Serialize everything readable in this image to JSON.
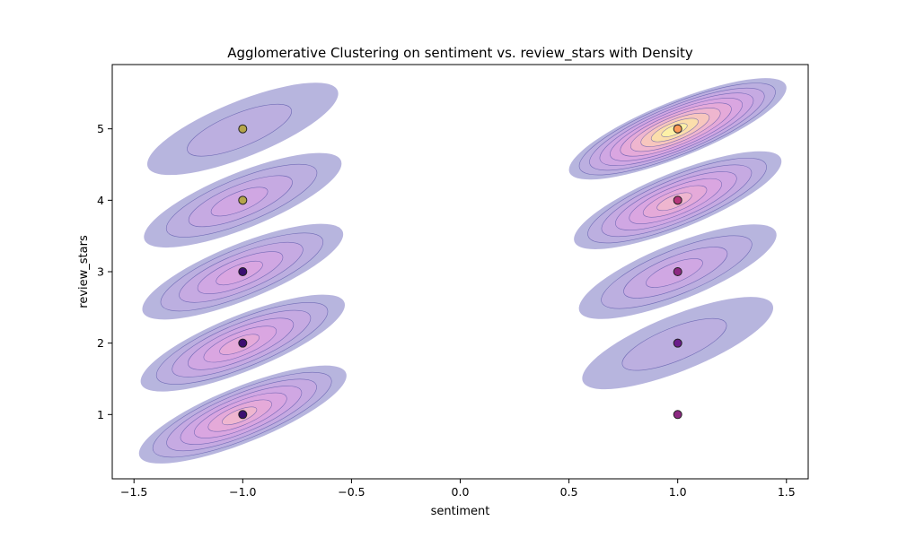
{
  "chart_data": {
    "type": "scatter",
    "title": "Agglomerative Clustering on sentiment vs. review_stars with Density",
    "xlabel": "sentiment",
    "ylabel": "review_stars",
    "xlim": [
      -1.6,
      1.6
    ],
    "ylim": [
      0.1,
      5.9
    ],
    "xticks": [
      -1.5,
      -1.0,
      -0.5,
      0.0,
      0.5,
      1.0,
      1.5
    ],
    "xtick_labels": [
      "−1.5",
      "−1.0",
      "−0.5",
      "0.0",
      "0.5",
      "1.0",
      "1.5"
    ],
    "yticks": [
      1,
      2,
      3,
      4,
      5
    ],
    "ytick_labels": [
      "1",
      "2",
      "3",
      "4",
      "5"
    ],
    "grid": false,
    "points": [
      {
        "x": -1,
        "y": 1,
        "color": "#3b0f70"
      },
      {
        "x": -1,
        "y": 2,
        "color": "#3b0f70"
      },
      {
        "x": -1,
        "y": 3,
        "color": "#3b0f70"
      },
      {
        "x": -1,
        "y": 4,
        "color": "#b5a54a"
      },
      {
        "x": -1,
        "y": 5,
        "color": "#b5a54a"
      },
      {
        "x": 1,
        "y": 1,
        "color": "#8c2981"
      },
      {
        "x": 1,
        "y": 2,
        "color": "#6a1b8a"
      },
      {
        "x": 1,
        "y": 3,
        "color": "#8c2981"
      },
      {
        "x": 1,
        "y": 4,
        "color": "#b6367a"
      },
      {
        "x": 1,
        "y": 5,
        "color": "#fc9a5a"
      }
    ],
    "density_blobs": [
      {
        "x": -1,
        "y": 1,
        "levels": 6
      },
      {
        "x": -1,
        "y": 2,
        "levels": 5
      },
      {
        "x": -1,
        "y": 3,
        "levels": 4
      },
      {
        "x": -1,
        "y": 4,
        "levels": 3
      },
      {
        "x": -1,
        "y": 5,
        "levels": 1
      },
      {
        "x": 1,
        "y": 2,
        "levels": 1
      },
      {
        "x": 1,
        "y": 3,
        "levels": 3
      },
      {
        "x": 1,
        "y": 4,
        "levels": 6
      },
      {
        "x": 1,
        "y": 5,
        "levels": 9
      }
    ],
    "density_colors": [
      "#b3b1dc",
      "#bcaee0",
      "#c6aae2",
      "#d0a6e3",
      "#daa6e0",
      "#e6abd8",
      "#f0b7cd",
      "#f7c8bb",
      "#fbe0a8",
      "#fdf3a6"
    ],
    "contour_line_color": "#5a55a8",
    "point_edge_color": "#222222"
  }
}
